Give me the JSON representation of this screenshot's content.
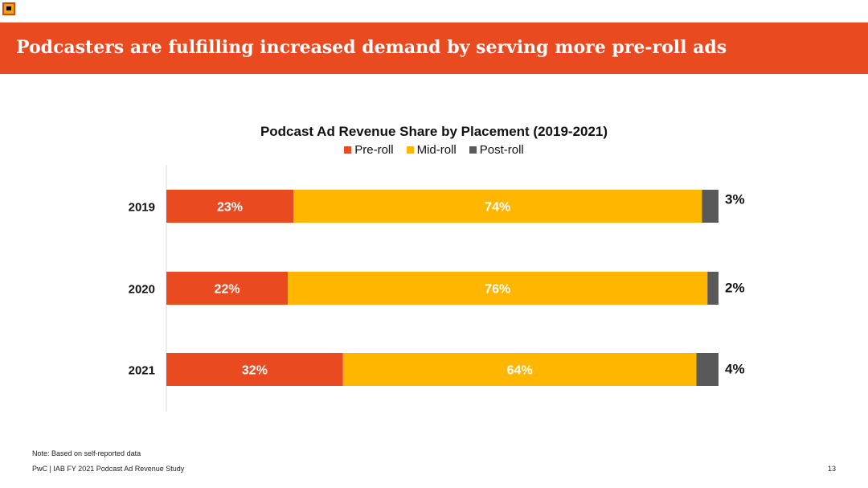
{
  "header": {
    "title": "Podcasters are fulfilling increased demand by serving more pre-roll ads"
  },
  "colors": {
    "banner": "#ea4a1f",
    "pre_roll": "#ea4a1f",
    "mid_roll": "#ffb600",
    "post_roll": "#595959"
  },
  "chart_data": {
    "type": "bar",
    "orientation": "horizontal",
    "stacked": true,
    "title": "Podcast Ad Revenue Share by Placement (2019-2021)",
    "categories": [
      "2019",
      "2020",
      "2021"
    ],
    "series": [
      {
        "name": "Pre-roll",
        "values": [
          23,
          22,
          32
        ],
        "labels": [
          "23%",
          "22%",
          "32%"
        ],
        "color": "#ea4a1f"
      },
      {
        "name": "Mid-roll",
        "values": [
          74,
          76,
          64
        ],
        "labels": [
          "74%",
          "76%",
          "64%"
        ],
        "color": "#ffb600"
      },
      {
        "name": "Post-roll",
        "values": [
          3,
          2,
          4
        ],
        "labels": [
          "3%",
          "2%",
          "4%"
        ],
        "color": "#595959"
      }
    ],
    "xlim": [
      0,
      100
    ],
    "legend": "top",
    "grid": false
  },
  "footer": {
    "note": "Note: Based on self-reported data",
    "source": "PwC  |  IAB FY 2021 Podcast Ad Revenue Study",
    "page_number": "13"
  }
}
